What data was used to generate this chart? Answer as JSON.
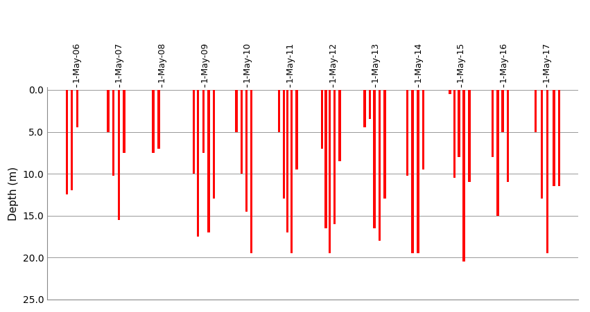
{
  "ylabel": "Depth (m)",
  "bar_color": "#FF0000",
  "background_color": "#FFFFFF",
  "ylim_bottom": 25.0,
  "ylim_top": -0.3,
  "yticks": [
    0.0,
    5.0,
    10.0,
    15.0,
    20.0,
    25.0
  ],
  "xlim": [
    2005.62,
    2018.05
  ],
  "bar_width": 0.055,
  "x_tick_labels": [
    "1-May-06",
    "1-May-07",
    "1-May-08",
    "1-May-09",
    "1-May-10",
    "1-May-11",
    "1-May-12",
    "1-May-13",
    "1-May-14",
    "1-May-15",
    "1-May-16",
    "1-May-17"
  ],
  "x_tick_positions": [
    2006.3,
    2007.3,
    2008.3,
    2009.3,
    2010.3,
    2011.3,
    2012.3,
    2013.3,
    2014.3,
    2015.3,
    2016.3,
    2017.3
  ],
  "bars": [
    [
      2006.08,
      12.5
    ],
    [
      2006.19,
      12.0
    ],
    [
      2006.32,
      4.5
    ],
    [
      2007.05,
      5.0
    ],
    [
      2007.17,
      10.2
    ],
    [
      2007.3,
      15.5
    ],
    [
      2007.42,
      7.5
    ],
    [
      2008.1,
      7.5
    ],
    [
      2008.23,
      7.0
    ],
    [
      2009.05,
      10.0
    ],
    [
      2009.15,
      17.5
    ],
    [
      2009.28,
      7.5
    ],
    [
      2009.4,
      17.0
    ],
    [
      2009.52,
      13.0
    ],
    [
      2010.05,
      5.0
    ],
    [
      2010.17,
      10.0
    ],
    [
      2010.28,
      14.5
    ],
    [
      2010.4,
      19.5
    ],
    [
      2011.05,
      5.0
    ],
    [
      2011.16,
      13.0
    ],
    [
      2011.24,
      17.0
    ],
    [
      2011.34,
      19.5
    ],
    [
      2011.46,
      9.5
    ],
    [
      2012.05,
      7.0
    ],
    [
      2012.14,
      16.5
    ],
    [
      2012.23,
      19.5
    ],
    [
      2012.35,
      16.0
    ],
    [
      2012.47,
      8.5
    ],
    [
      2013.05,
      4.5
    ],
    [
      2013.17,
      3.5
    ],
    [
      2013.28,
      16.5
    ],
    [
      2013.4,
      18.0
    ],
    [
      2013.52,
      13.0
    ],
    [
      2014.05,
      10.2
    ],
    [
      2014.17,
      19.5
    ],
    [
      2014.3,
      19.5
    ],
    [
      2014.42,
      9.5
    ],
    [
      2015.05,
      0.5
    ],
    [
      2015.15,
      10.5
    ],
    [
      2015.26,
      8.0
    ],
    [
      2015.37,
      20.5
    ],
    [
      2015.5,
      11.0
    ],
    [
      2016.05,
      8.0
    ],
    [
      2016.17,
      15.0
    ],
    [
      2016.28,
      5.0
    ],
    [
      2016.4,
      11.0
    ],
    [
      2017.05,
      5.0
    ],
    [
      2017.2,
      13.0
    ],
    [
      2017.33,
      19.5
    ],
    [
      2017.48,
      11.5
    ],
    [
      2017.6,
      11.5
    ]
  ]
}
